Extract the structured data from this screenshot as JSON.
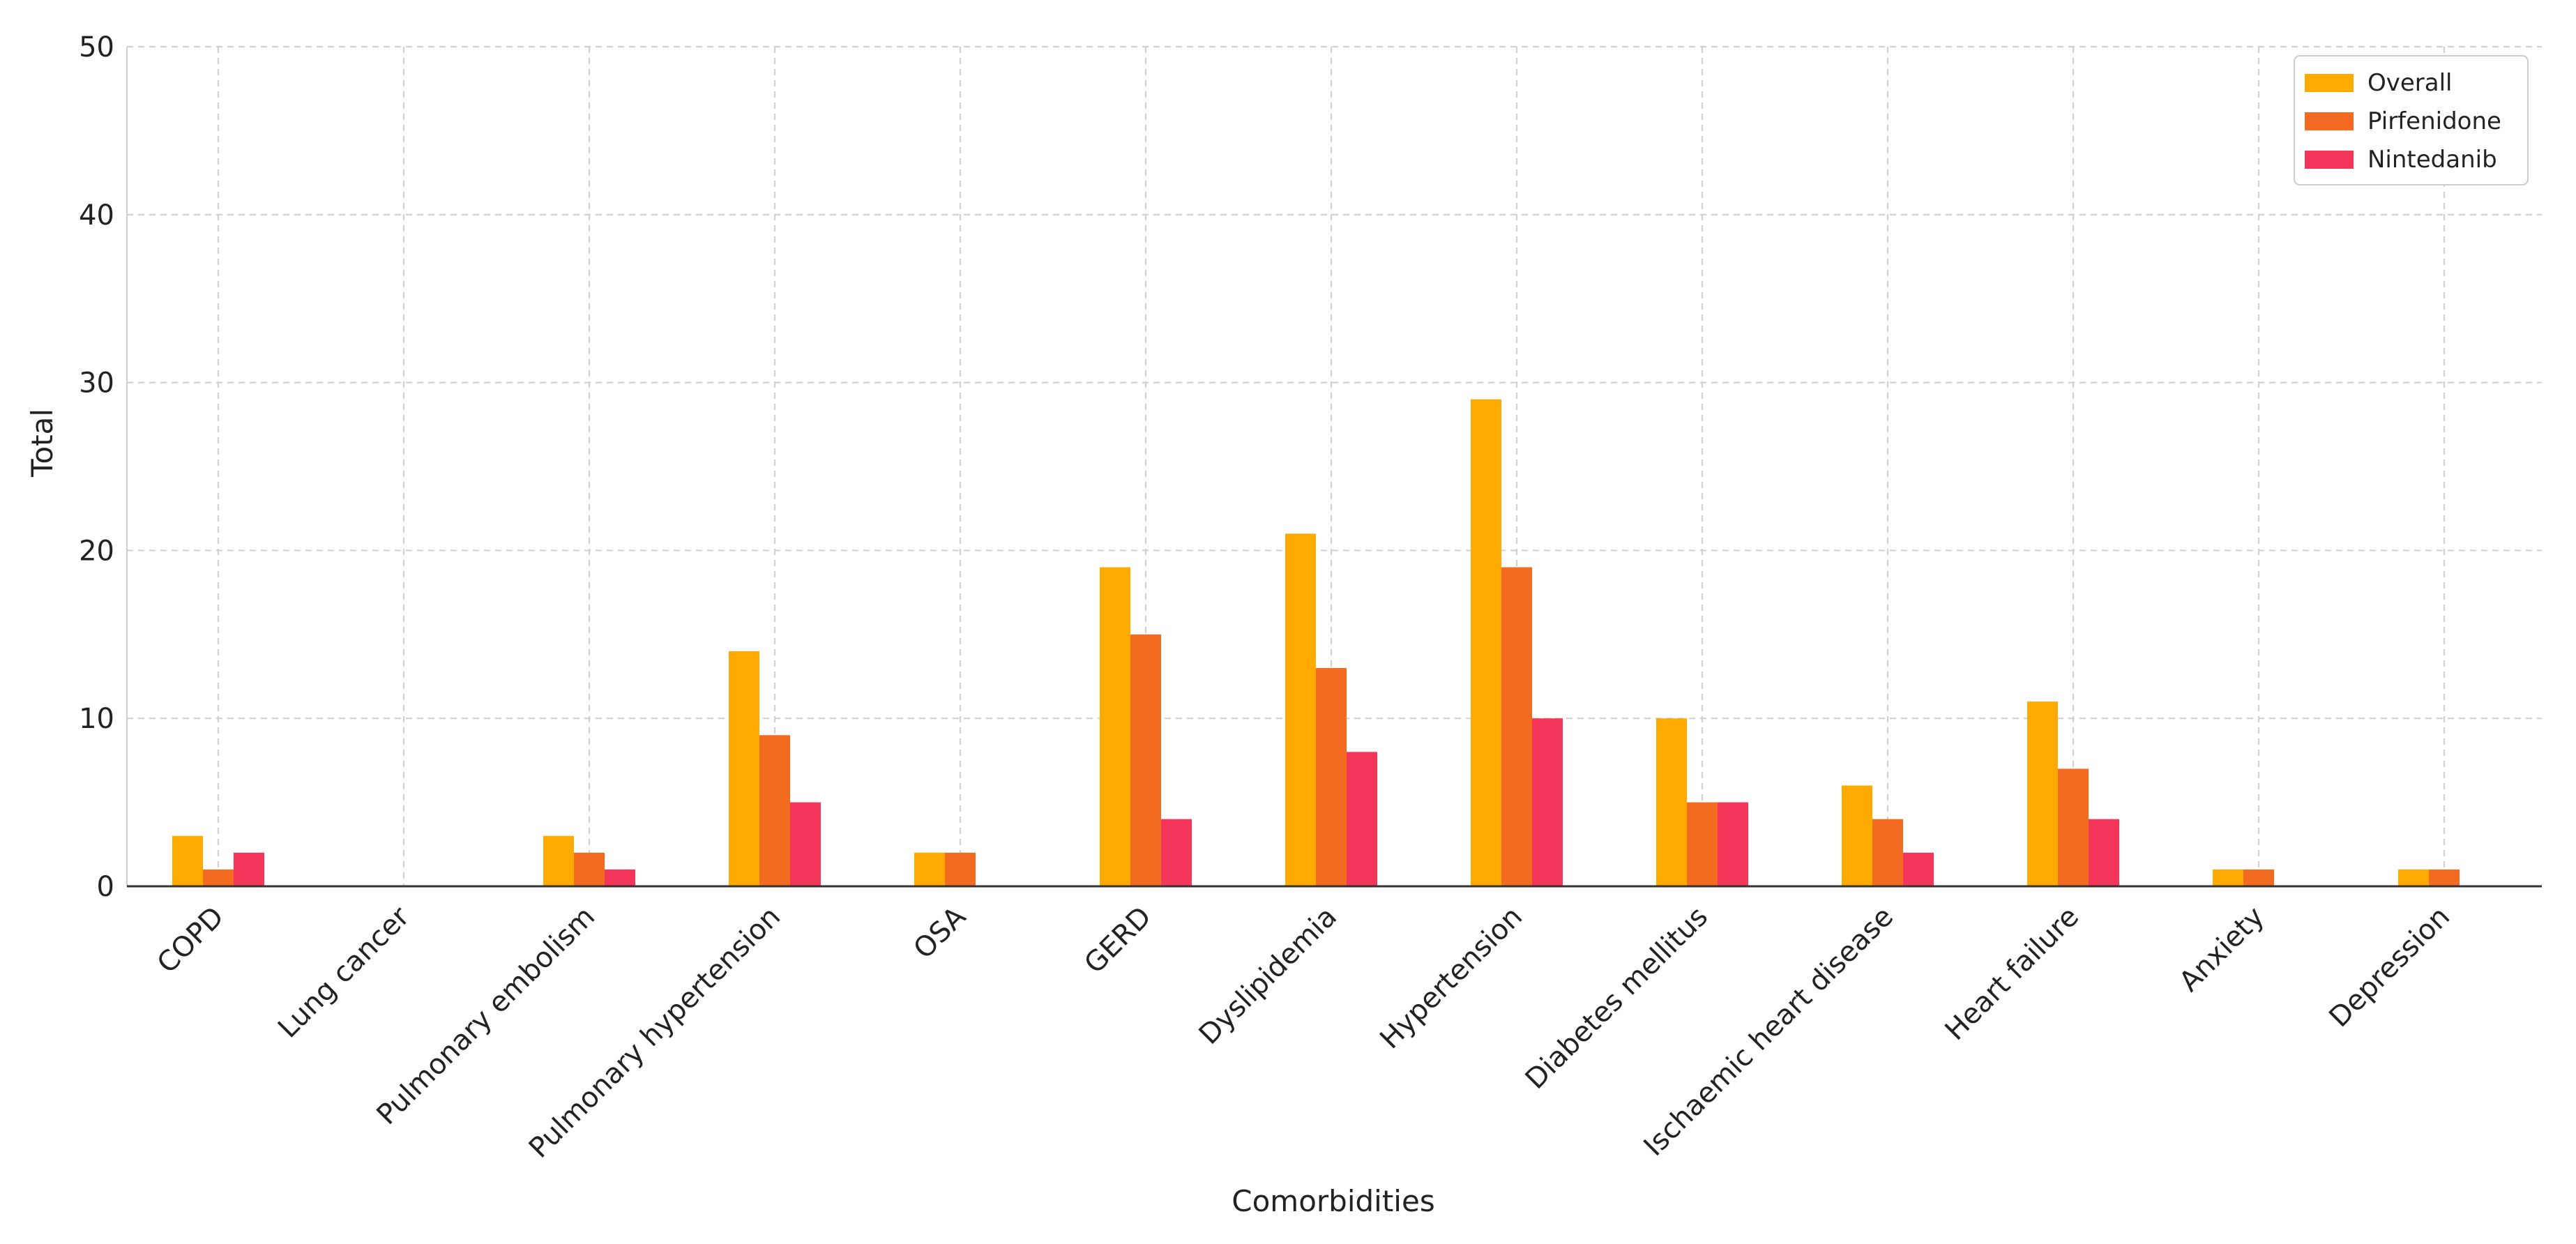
{
  "chart_data": {
    "type": "bar",
    "title": "",
    "xlabel": "Comorbidities",
    "ylabel": "Total",
    "ylim": [
      0,
      50
    ],
    "yticks": [
      0,
      10,
      20,
      30,
      40,
      50
    ],
    "grid": true,
    "legend_position": "top-right",
    "categories": [
      "COPD",
      "Lung cancer",
      "Pulmonary embolism",
      "Pulmonary hypertension",
      "OSA",
      "GERD",
      "Dyslipidemia",
      "Hypertension",
      "Diabetes mellitus",
      "Ischaemic heart disease",
      "Heart failure",
      "Anxiety",
      "Depression"
    ],
    "series": [
      {
        "name": "Overall",
        "color": "#FFAA00",
        "values": [
          3,
          0,
          3,
          14,
          2,
          19,
          21,
          29,
          10,
          6,
          11,
          1,
          1
        ]
      },
      {
        "name": "Pirfenidone",
        "color": "#F26B21",
        "values": [
          1,
          0,
          2,
          9,
          2,
          15,
          13,
          19,
          5,
          4,
          7,
          1,
          1
        ]
      },
      {
        "name": "Nintedanib",
        "color": "#F4365A",
        "values": [
          2,
          0,
          1,
          5,
          0,
          4,
          8,
          10,
          5,
          2,
          4,
          0,
          0
        ]
      }
    ]
  }
}
